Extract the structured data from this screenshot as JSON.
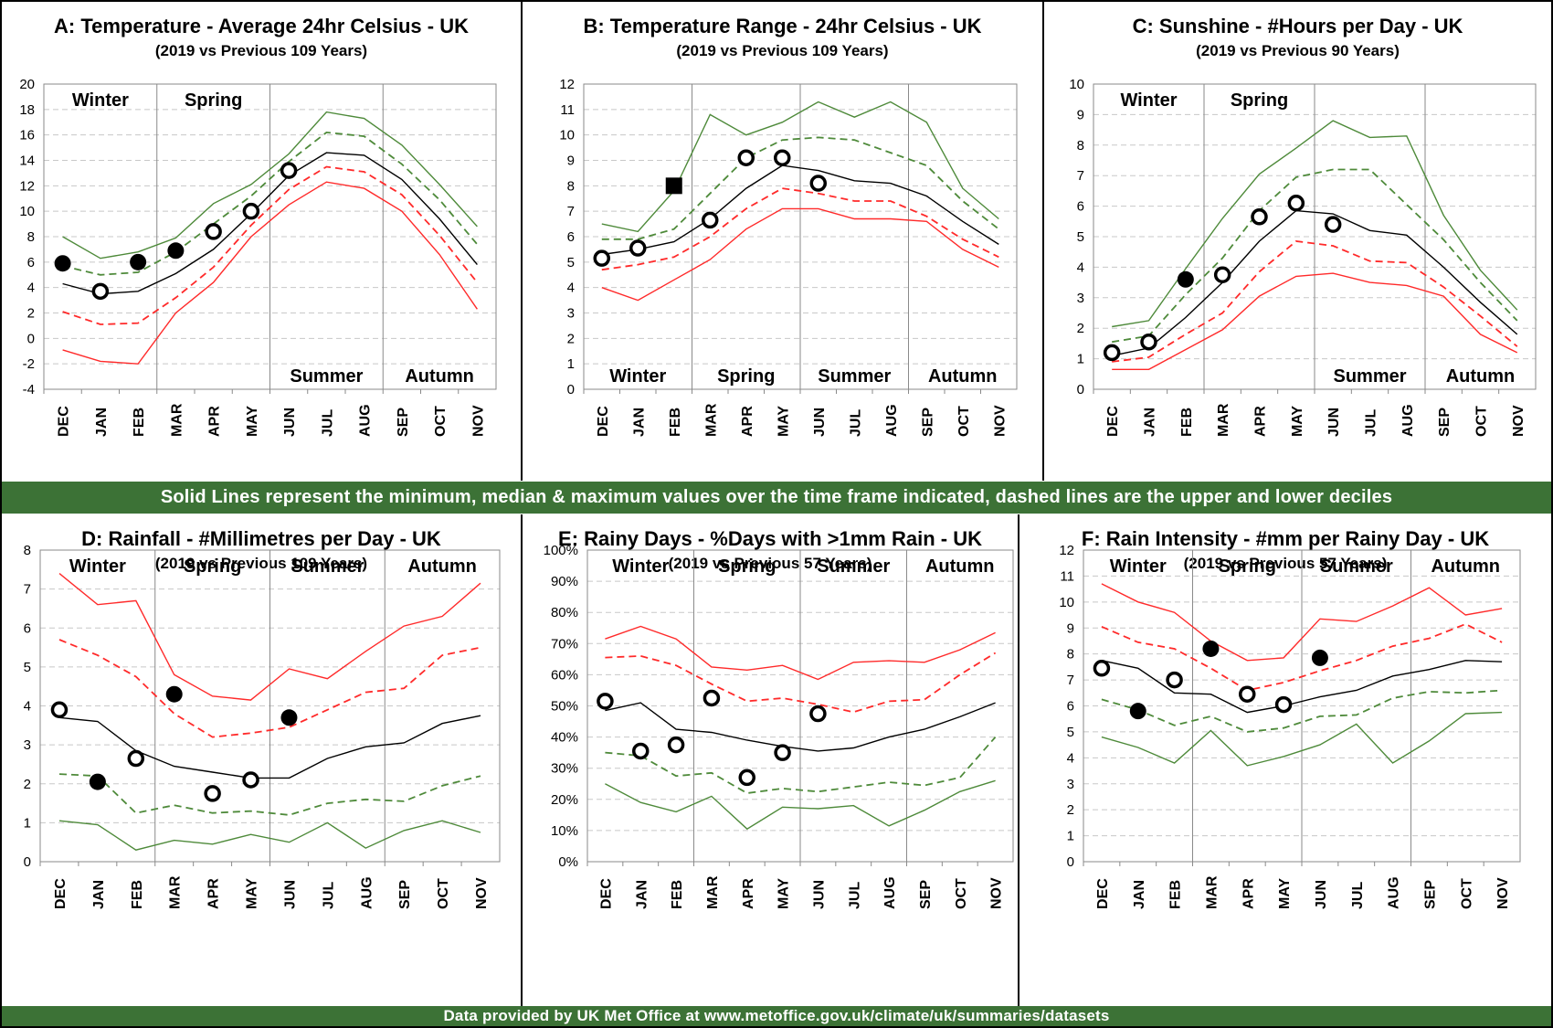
{
  "months": [
    "DEC",
    "JAN",
    "FEB",
    "MAR",
    "APR",
    "MAY",
    "JUN",
    "JUL",
    "AUG",
    "SEP",
    "OCT",
    "NOV"
  ],
  "banner_top": "Solid Lines represent the minimum, median & maximum values over the time frame indicated, dashed lines are the upper and lower deciles",
  "banner_bottom": "Data provided by UK Met Office at www.metoffice.gov.uk/climate/uk/summaries/datasets",
  "colors": {
    "red": "#ff2a2a",
    "black": "#000000",
    "green": "#4e8a3a",
    "banner": "#3c7236"
  },
  "chart_data": [
    {
      "type": "line",
      "title": "A: Temperature - Average 24hr Celsius - UK",
      "subtitle": "(2019 vs Previous 109 Years)",
      "ylim": [
        -4,
        20
      ],
      "ytick_step": 2,
      "ytick_suffix": "",
      "seasons": [
        "Winter",
        "Spring",
        "Summer",
        "Autumn"
      ],
      "season_label_rows": [
        "top",
        "top",
        "bottom",
        "bottom"
      ],
      "series": [
        {
          "color": "red",
          "dash": false,
          "values": [
            -0.9,
            -1.8,
            -2.0,
            2.0,
            4.4,
            8.0,
            10.5,
            12.3,
            11.8,
            10.0,
            6.6,
            2.3
          ]
        },
        {
          "color": "red",
          "dash": true,
          "values": [
            2.1,
            1.1,
            1.2,
            3.2,
            5.6,
            8.9,
            11.7,
            13.5,
            13.1,
            11.3,
            8.1,
            4.4
          ]
        },
        {
          "color": "black",
          "dash": false,
          "values": [
            4.3,
            3.5,
            3.7,
            5.1,
            7.0,
            9.8,
            12.8,
            14.6,
            14.4,
            12.5,
            9.4,
            5.8
          ]
        },
        {
          "color": "green",
          "dash": true,
          "values": [
            5.7,
            5.0,
            5.2,
            6.8,
            9.0,
            11.2,
            13.9,
            16.2,
            15.9,
            13.7,
            10.9,
            7.4
          ]
        },
        {
          "color": "green",
          "dash": false,
          "values": [
            8.0,
            6.3,
            6.8,
            7.9,
            10.6,
            12.1,
            14.5,
            17.8,
            17.3,
            15.2,
            12.1,
            8.8
          ]
        }
      ],
      "points_2019": [
        {
          "month": "DEC",
          "value": 5.9,
          "filled": true
        },
        {
          "month": "JAN",
          "value": 3.7,
          "filled": false
        },
        {
          "month": "FEB",
          "value": 6.0,
          "filled": true
        },
        {
          "month": "MAR",
          "value": 6.9,
          "filled": true
        },
        {
          "month": "APR",
          "value": 8.4,
          "filled": false
        },
        {
          "month": "MAY",
          "value": 10.0,
          "filled": false
        },
        {
          "month": "JUN",
          "value": 13.2,
          "filled": false
        }
      ]
    },
    {
      "type": "line",
      "title": "B: Temperature Range - 24hr Celsius - UK",
      "subtitle": "(2019 vs Previous 109 Years)",
      "ylim": [
        0,
        12
      ],
      "ytick_step": 1,
      "ytick_suffix": "",
      "seasons": [
        "Winter",
        "Spring",
        "Summer",
        "Autumn"
      ],
      "season_label_rows": [
        "bottom",
        "bottom",
        "bottom",
        "bottom"
      ],
      "series": [
        {
          "color": "red",
          "dash": false,
          "values": [
            4.0,
            3.5,
            4.3,
            5.1,
            6.3,
            7.1,
            7.1,
            6.7,
            6.7,
            6.6,
            5.5,
            4.8
          ]
        },
        {
          "color": "red",
          "dash": true,
          "values": [
            4.7,
            4.9,
            5.2,
            6.0,
            7.1,
            7.9,
            7.7,
            7.4,
            7.4,
            6.8,
            5.9,
            5.2
          ]
        },
        {
          "color": "black",
          "dash": false,
          "values": [
            5.3,
            5.5,
            5.8,
            6.7,
            7.9,
            8.8,
            8.6,
            8.2,
            8.1,
            7.6,
            6.6,
            5.7
          ]
        },
        {
          "color": "green",
          "dash": true,
          "values": [
            5.9,
            5.9,
            6.3,
            7.7,
            9.1,
            9.8,
            9.9,
            9.8,
            9.3,
            8.8,
            7.4,
            6.3
          ]
        },
        {
          "color": "green",
          "dash": false,
          "values": [
            6.5,
            6.2,
            7.8,
            10.8,
            10.0,
            10.5,
            11.3,
            10.7,
            11.3,
            10.5,
            7.9,
            6.7
          ]
        }
      ],
      "points_2019": [
        {
          "month": "DEC",
          "value": 5.15,
          "filled": false
        },
        {
          "month": "JAN",
          "value": 5.55,
          "filled": false
        },
        {
          "month": "FEB",
          "value": 8.0,
          "filled": true,
          "square": true
        },
        {
          "month": "MAR",
          "value": 6.65,
          "filled": false
        },
        {
          "month": "APR",
          "value": 9.1,
          "filled": false
        },
        {
          "month": "MAY",
          "value": 9.1,
          "filled": false
        },
        {
          "month": "JUN",
          "value": 8.1,
          "filled": false
        }
      ]
    },
    {
      "type": "line",
      "title": "C: Sunshine - #Hours per Day - UK",
      "subtitle": "(2019 vs Previous 90 Years)",
      "ylim": [
        0,
        10
      ],
      "ytick_step": 1,
      "ytick_suffix": "",
      "seasons": [
        "Winter",
        "Spring",
        "Summer",
        "Autumn"
      ],
      "season_label_rows": [
        "top",
        "top",
        "bottom",
        "bottom"
      ],
      "series": [
        {
          "color": "red",
          "dash": false,
          "values": [
            0.65,
            0.65,
            1.3,
            1.95,
            3.05,
            3.7,
            3.8,
            3.5,
            3.4,
            3.05,
            1.8,
            1.2
          ]
        },
        {
          "color": "red",
          "dash": true,
          "values": [
            0.9,
            1.05,
            1.8,
            2.5,
            3.85,
            4.85,
            4.7,
            4.2,
            4.15,
            3.35,
            2.4,
            1.4
          ]
        },
        {
          "color": "black",
          "dash": false,
          "values": [
            1.1,
            1.35,
            2.35,
            3.5,
            4.85,
            5.85,
            5.75,
            5.2,
            5.05,
            4.0,
            2.85,
            1.8
          ]
        },
        {
          "color": "green",
          "dash": true,
          "values": [
            1.55,
            1.75,
            3.1,
            4.3,
            5.85,
            6.95,
            7.2,
            7.2,
            6.05,
            4.9,
            3.5,
            2.25
          ]
        },
        {
          "color": "green",
          "dash": false,
          "values": [
            2.05,
            2.25,
            3.95,
            5.6,
            7.05,
            7.9,
            8.8,
            8.25,
            8.3,
            5.7,
            3.9,
            2.6
          ]
        }
      ],
      "points_2019": [
        {
          "month": "DEC",
          "value": 1.2,
          "filled": false
        },
        {
          "month": "JAN",
          "value": 1.55,
          "filled": false
        },
        {
          "month": "FEB",
          "value": 3.6,
          "filled": true
        },
        {
          "month": "MAR",
          "value": 3.75,
          "filled": false
        },
        {
          "month": "APR",
          "value": 5.65,
          "filled": false
        },
        {
          "month": "MAY",
          "value": 6.1,
          "filled": false
        },
        {
          "month": "JUN",
          "value": 5.4,
          "filled": false
        }
      ]
    },
    {
      "type": "line",
      "title": "D: Rainfall - #Millimetres per Day - UK",
      "subtitle": "(2019 vs Previous 109 Years)",
      "ylim": [
        0,
        8
      ],
      "ytick_step": 1,
      "ytick_suffix": "",
      "seasons": [
        "Winter",
        "Spring",
        "Summer",
        "Autumn"
      ],
      "season_label_rows": [
        "top",
        "top",
        "top",
        "top"
      ],
      "series": [
        {
          "color": "red",
          "dash": false,
          "values": [
            7.4,
            6.6,
            6.7,
            4.8,
            4.25,
            4.15,
            4.95,
            4.7,
            5.4,
            6.05,
            6.3,
            7.15
          ]
        },
        {
          "color": "red",
          "dash": true,
          "values": [
            5.7,
            5.3,
            4.75,
            3.8,
            3.2,
            3.3,
            3.45,
            3.9,
            4.35,
            4.45,
            5.3,
            5.5
          ]
        },
        {
          "color": "black",
          "dash": false,
          "values": [
            3.7,
            3.6,
            2.85,
            2.45,
            2.3,
            2.15,
            2.15,
            2.65,
            2.95,
            3.05,
            3.55,
            3.75
          ]
        },
        {
          "color": "green",
          "dash": true,
          "values": [
            2.25,
            2.2,
            1.25,
            1.45,
            1.25,
            1.3,
            1.2,
            1.5,
            1.6,
            1.55,
            1.95,
            2.2
          ]
        },
        {
          "color": "green",
          "dash": false,
          "values": [
            1.05,
            0.95,
            0.3,
            0.55,
            0.45,
            0.7,
            0.5,
            1.0,
            0.35,
            0.8,
            1.05,
            0.75
          ]
        }
      ],
      "points_2019": [
        {
          "month": "DEC",
          "value": 3.9,
          "filled": false
        },
        {
          "month": "JAN",
          "value": 2.05,
          "filled": true
        },
        {
          "month": "FEB",
          "value": 2.65,
          "filled": false
        },
        {
          "month": "MAR",
          "value": 4.3,
          "filled": true
        },
        {
          "month": "APR",
          "value": 1.75,
          "filled": false
        },
        {
          "month": "MAY",
          "value": 2.1,
          "filled": false
        },
        {
          "month": "JUN",
          "value": 3.7,
          "filled": true
        }
      ]
    },
    {
      "type": "line",
      "title": "E: Rainy Days - %Days with >1mm Rain - UK",
      "subtitle": "(2019 vs Previous 57 Years)",
      "ylim": [
        0,
        100
      ],
      "ytick_step": 10,
      "ytick_suffix": "%",
      "seasons": [
        "Winter",
        "Spring",
        "Summer",
        "Autumn"
      ],
      "season_label_rows": [
        "top",
        "top",
        "top",
        "top"
      ],
      "series": [
        {
          "color": "red",
          "dash": false,
          "values": [
            71.5,
            75.5,
            71.5,
            62.5,
            61.5,
            63.0,
            58.5,
            64.0,
            64.5,
            64.0,
            68.0,
            73.5
          ]
        },
        {
          "color": "red",
          "dash": true,
          "values": [
            65.5,
            66.0,
            63.0,
            57.0,
            51.5,
            52.5,
            50.5,
            48.0,
            51.5,
            52.0,
            60.0,
            67.0
          ]
        },
        {
          "color": "black",
          "dash": false,
          "values": [
            48.5,
            51.0,
            42.5,
            41.5,
            39.0,
            37.0,
            35.5,
            36.5,
            40.0,
            42.5,
            46.5,
            51.0
          ]
        },
        {
          "color": "green",
          "dash": true,
          "values": [
            35.0,
            34.0,
            27.5,
            28.5,
            22.0,
            23.5,
            22.5,
            24.0,
            25.5,
            24.5,
            27.0,
            40.0
          ]
        },
        {
          "color": "green",
          "dash": false,
          "values": [
            25.0,
            19.0,
            16.0,
            21.0,
            10.5,
            17.5,
            17.0,
            18.0,
            11.5,
            16.5,
            22.5,
            26.0
          ]
        }
      ],
      "points_2019": [
        {
          "month": "DEC",
          "value": 51.5,
          "filled": false
        },
        {
          "month": "JAN",
          "value": 35.5,
          "filled": false
        },
        {
          "month": "FEB",
          "value": 37.5,
          "filled": false
        },
        {
          "month": "MAR",
          "value": 52.5,
          "filled": false
        },
        {
          "month": "APR",
          "value": 27.0,
          "filled": false
        },
        {
          "month": "MAY",
          "value": 35.0,
          "filled": false
        },
        {
          "month": "JUN",
          "value": 47.5,
          "filled": false
        }
      ]
    },
    {
      "type": "line",
      "title": "F: Rain Intensity - #mm per Rainy Day - UK",
      "subtitle": "(2019 vs Previous 57 Years)",
      "ylim": [
        0,
        12
      ],
      "ytick_step": 1,
      "ytick_suffix": "",
      "seasons": [
        "Winter",
        "Spring",
        "Summer",
        "Autumn"
      ],
      "season_label_rows": [
        "top",
        "top",
        "top",
        "top"
      ],
      "series": [
        {
          "color": "red",
          "dash": false,
          "values": [
            10.7,
            10.0,
            9.6,
            8.5,
            7.75,
            7.85,
            9.35,
            9.25,
            9.85,
            10.55,
            9.5,
            9.75
          ]
        },
        {
          "color": "red",
          "dash": true,
          "values": [
            9.05,
            8.45,
            8.2,
            7.45,
            6.6,
            6.9,
            7.35,
            7.75,
            8.3,
            8.6,
            9.15,
            8.45
          ]
        },
        {
          "color": "black",
          "dash": false,
          "values": [
            7.75,
            7.45,
            6.5,
            6.45,
            5.75,
            6.0,
            6.35,
            6.6,
            7.15,
            7.4,
            7.75,
            7.7
          ]
        },
        {
          "color": "green",
          "dash": true,
          "values": [
            6.25,
            5.85,
            5.25,
            5.6,
            5.0,
            5.15,
            5.6,
            5.65,
            6.3,
            6.55,
            6.5,
            6.6
          ]
        },
        {
          "color": "green",
          "dash": false,
          "values": [
            4.8,
            4.4,
            3.8,
            5.05,
            3.7,
            4.05,
            4.5,
            5.3,
            3.8,
            4.65,
            5.7,
            5.75
          ]
        }
      ],
      "points_2019": [
        {
          "month": "DEC",
          "value": 7.45,
          "filled": false
        },
        {
          "month": "JAN",
          "value": 5.8,
          "filled": true
        },
        {
          "month": "FEB",
          "value": 7.0,
          "filled": false
        },
        {
          "month": "MAR",
          "value": 8.2,
          "filled": true
        },
        {
          "month": "APR",
          "value": 6.45,
          "filled": false
        },
        {
          "month": "MAY",
          "value": 6.05,
          "filled": false
        },
        {
          "month": "JUN",
          "value": 7.85,
          "filled": true
        }
      ]
    }
  ]
}
